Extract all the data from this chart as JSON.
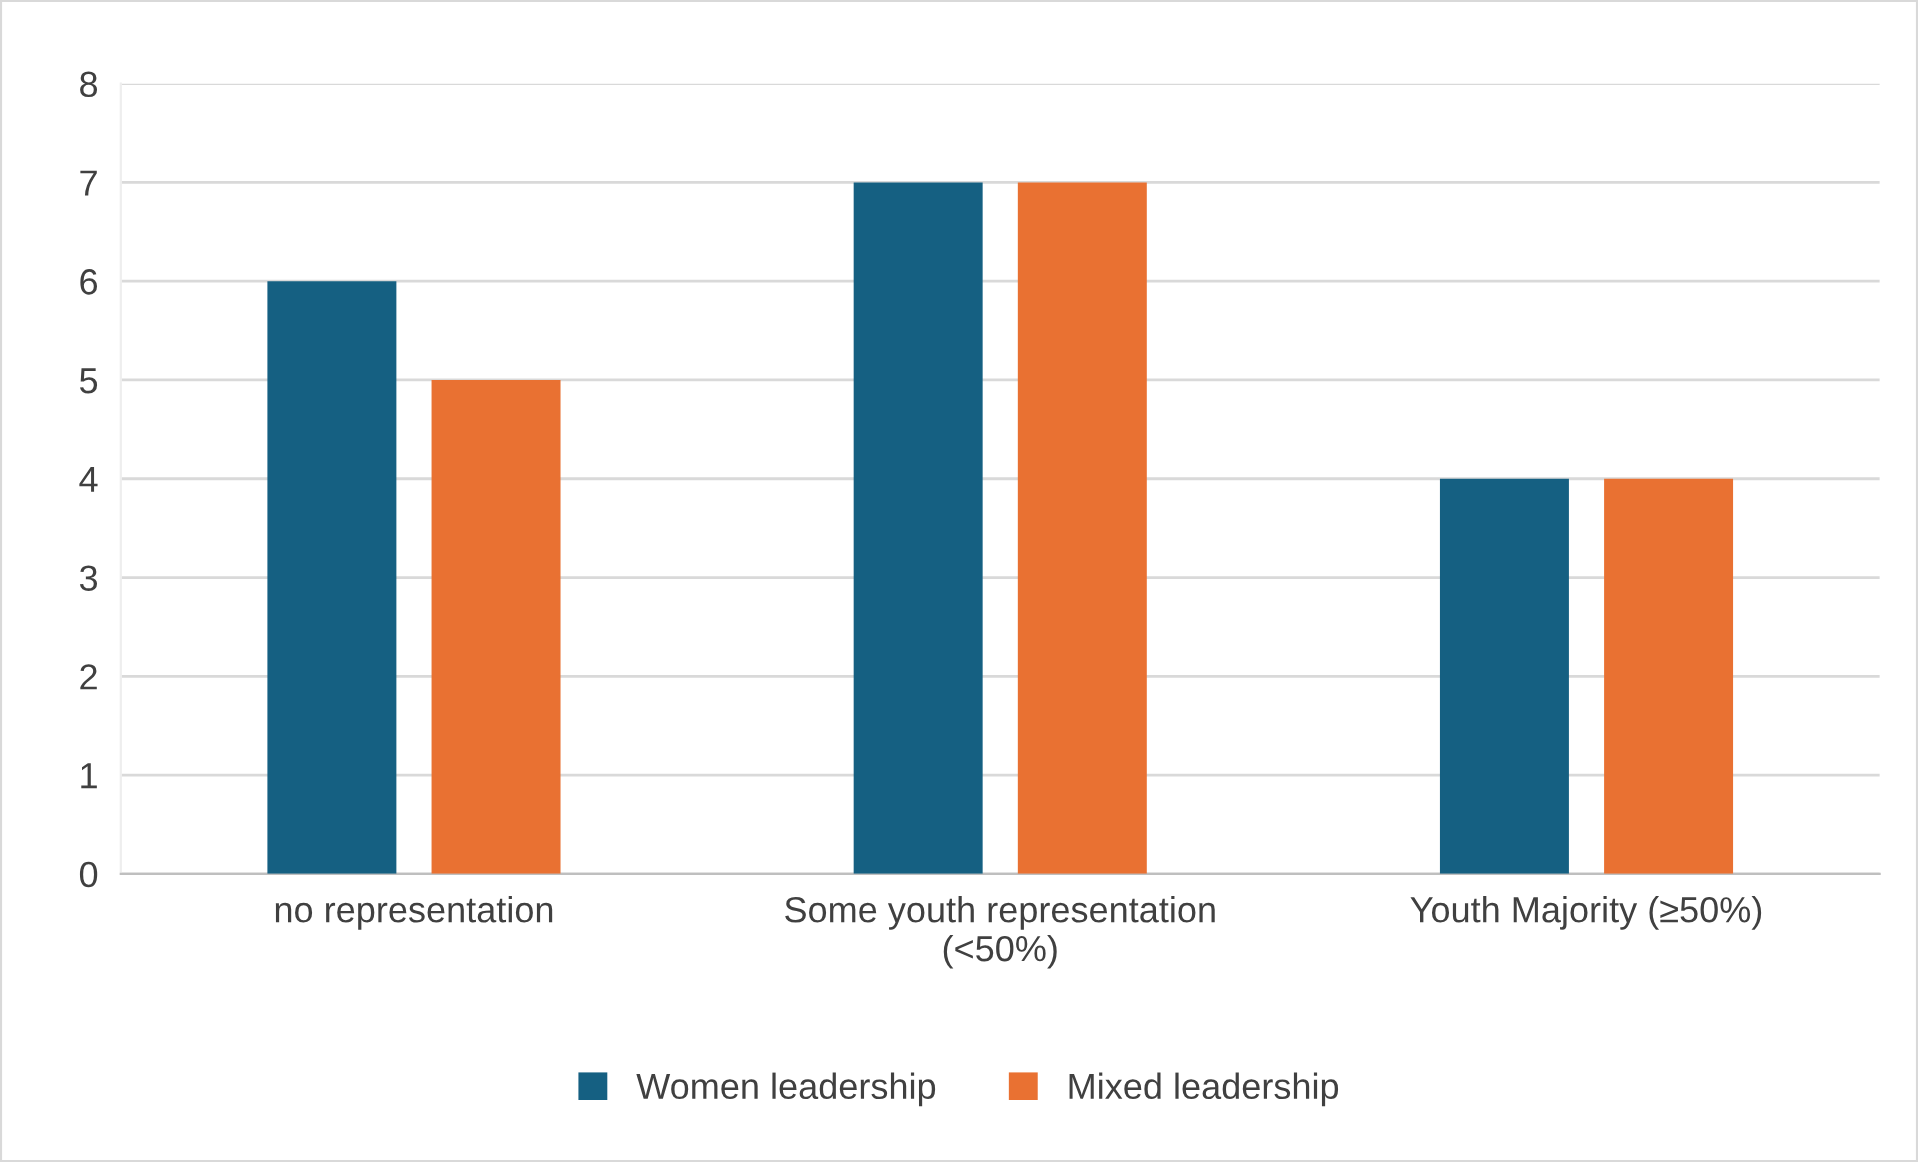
{
  "chart_data": {
    "type": "bar",
    "categories": [
      "no representation",
      "Some youth representation\n(<50%)",
      "Youth Majority (≥50%)"
    ],
    "series": [
      {
        "name": "Women leadership",
        "color": "#156082",
        "values": [
          6,
          7,
          4
        ]
      },
      {
        "name": "Mixed leadership",
        "color": "#e97132",
        "values": [
          5,
          7,
          4
        ]
      }
    ],
    "ylim": [
      0,
      8
    ],
    "yticks": [
      0,
      1,
      2,
      3,
      4,
      5,
      6,
      7,
      8
    ],
    "grid": "y",
    "legend": "bottom"
  }
}
